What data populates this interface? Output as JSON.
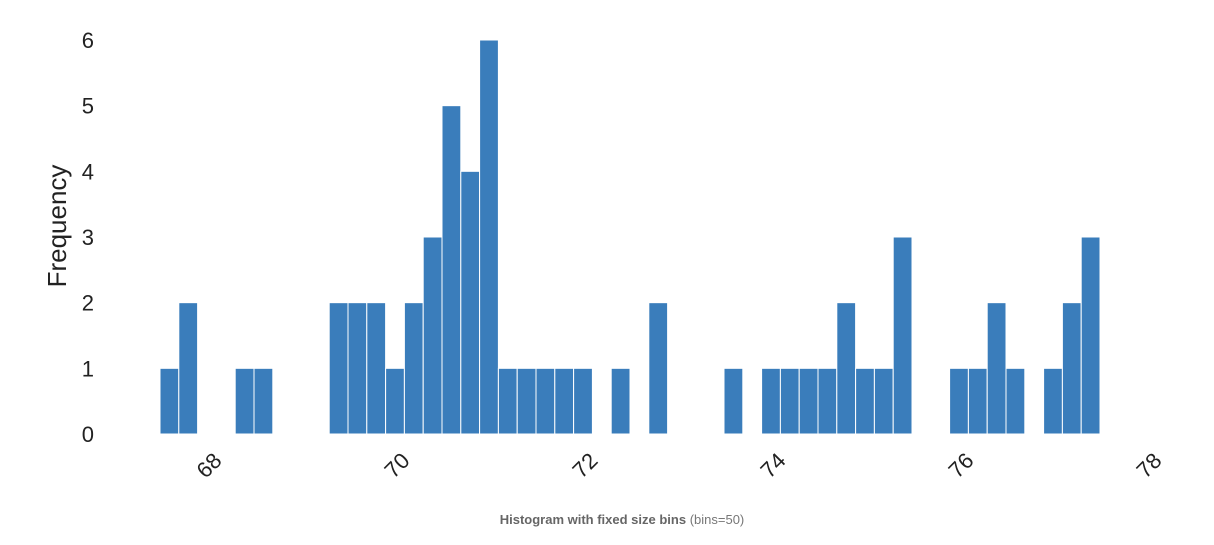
{
  "chart_data": {
    "type": "bar",
    "xlabel": "",
    "ylabel": "Frequency",
    "bin_start": 67.5,
    "bin_width": 0.2,
    "counts": [
      1,
      2,
      0,
      0,
      1,
      1,
      0,
      0,
      0,
      2,
      2,
      2,
      1,
      2,
      3,
      5,
      4,
      6,
      1,
      1,
      1,
      1,
      1,
      0,
      1,
      0,
      2,
      0,
      0,
      0,
      1,
      0,
      1,
      1,
      1,
      1,
      2,
      1,
      1,
      3,
      0,
      0,
      1,
      1,
      2,
      1,
      0,
      1,
      2,
      3
    ],
    "x_ticks": [
      68,
      70,
      72,
      74,
      76,
      78
    ],
    "y_ticks": [
      0,
      1,
      2,
      3,
      4,
      5,
      6
    ],
    "xlim": [
      67.5,
      78
    ],
    "ylim": [
      0,
      6
    ],
    "bar_color": "#3a7dbb",
    "grid": false
  },
  "caption": {
    "bold": "Histogram with fixed size bins",
    "rest": " (bins=50)"
  }
}
